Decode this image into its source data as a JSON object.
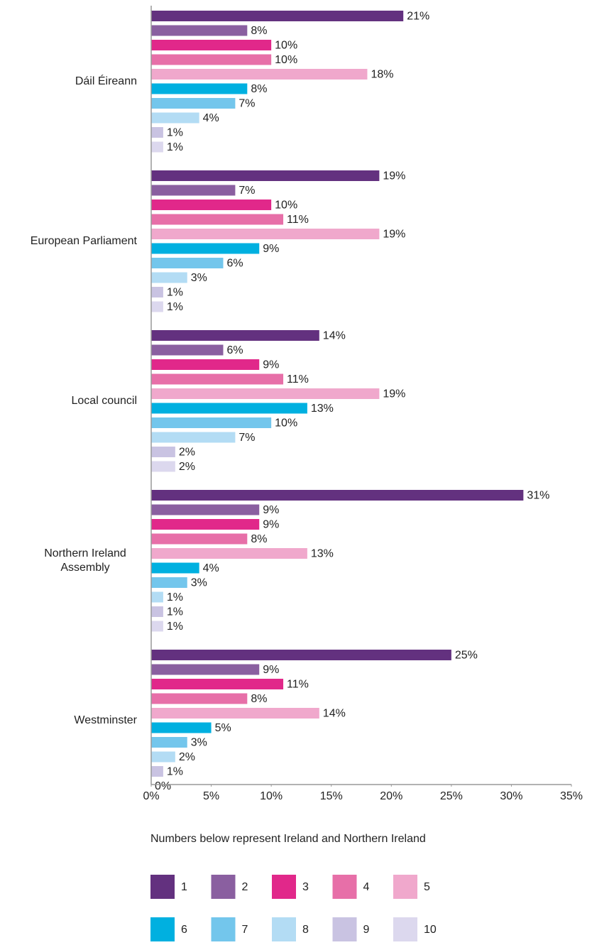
{
  "chart_data": {
    "type": "bar",
    "orientation": "horizontal",
    "categories": [
      "Dáil Éireann",
      "European Parliament",
      "Local council",
      "Northern Ireland Assembly",
      "Westminster"
    ],
    "series": [
      {
        "name": "1",
        "color": "#63317f",
        "values": [
          21,
          19,
          14,
          31,
          25
        ],
        "value_labels": [
          "21%",
          "19%",
          "14%",
          "31%",
          "25%"
        ]
      },
      {
        "name": "2",
        "color": "#8a5fa0",
        "values": [
          8,
          7,
          6,
          9,
          9
        ],
        "value_labels": [
          "8%",
          "7%",
          "6%",
          "9%",
          "9%"
        ]
      },
      {
        "name": "3",
        "color": "#e1288a",
        "values": [
          10,
          10,
          9,
          9,
          11
        ],
        "value_labels": [
          "10%",
          "10%",
          "9%",
          "9%",
          "11%"
        ]
      },
      {
        "name": "4",
        "color": "#e76fa8",
        "values": [
          10,
          11,
          11,
          8,
          8
        ],
        "value_labels": [
          "10%",
          "11%",
          "11%",
          "8%",
          "8%"
        ]
      },
      {
        "name": "5",
        "color": "#f0a8cc",
        "values": [
          18,
          19,
          19,
          13,
          14
        ],
        "value_labels": [
          "18%",
          "19%",
          "19%",
          "13%",
          "14%"
        ]
      },
      {
        "name": "6",
        "color": "#00b0e0",
        "values": [
          8,
          9,
          13,
          4,
          5
        ],
        "value_labels": [
          "8%",
          "9%",
          "13%",
          "4%",
          "5%"
        ]
      },
      {
        "name": "7",
        "color": "#73c6ec",
        "values": [
          7,
          6,
          10,
          3,
          3
        ],
        "value_labels": [
          "7%",
          "6%",
          "10%",
          "3%",
          "3%"
        ]
      },
      {
        "name": "8",
        "color": "#b3dcf4",
        "values": [
          4,
          3,
          7,
          1,
          2
        ],
        "value_labels": [
          "4%",
          "3%",
          "7%",
          "1%",
          "2%"
        ]
      },
      {
        "name": "9",
        "color": "#c9c3e2",
        "values": [
          1,
          1,
          2,
          1,
          1
        ],
        "value_labels": [
          "1%",
          "1%",
          "2%",
          "1%",
          "1%"
        ]
      },
      {
        "name": "10",
        "color": "#dcd8ee",
        "values": [
          1,
          1,
          2,
          1,
          0
        ],
        "value_labels": [
          "1%",
          "1%",
          "2%",
          "1%",
          "0%"
        ]
      }
    ],
    "xlim": [
      0,
      35
    ],
    "xticks": [
      {
        "value": 0,
        "label": "0%"
      },
      {
        "value": 5,
        "label": "5%"
      },
      {
        "value": 10,
        "label": "10%"
      },
      {
        "value": 15,
        "label": "15%"
      },
      {
        "value": 20,
        "label": "20%"
      },
      {
        "value": 25,
        "label": "25%"
      },
      {
        "value": 30,
        "label": "30%"
      },
      {
        "value": 35,
        "label": "35%"
      }
    ],
    "grid": false,
    "legend_title": "Numbers below represent Ireland and Northern Ireland",
    "legend_position": "bottom"
  }
}
